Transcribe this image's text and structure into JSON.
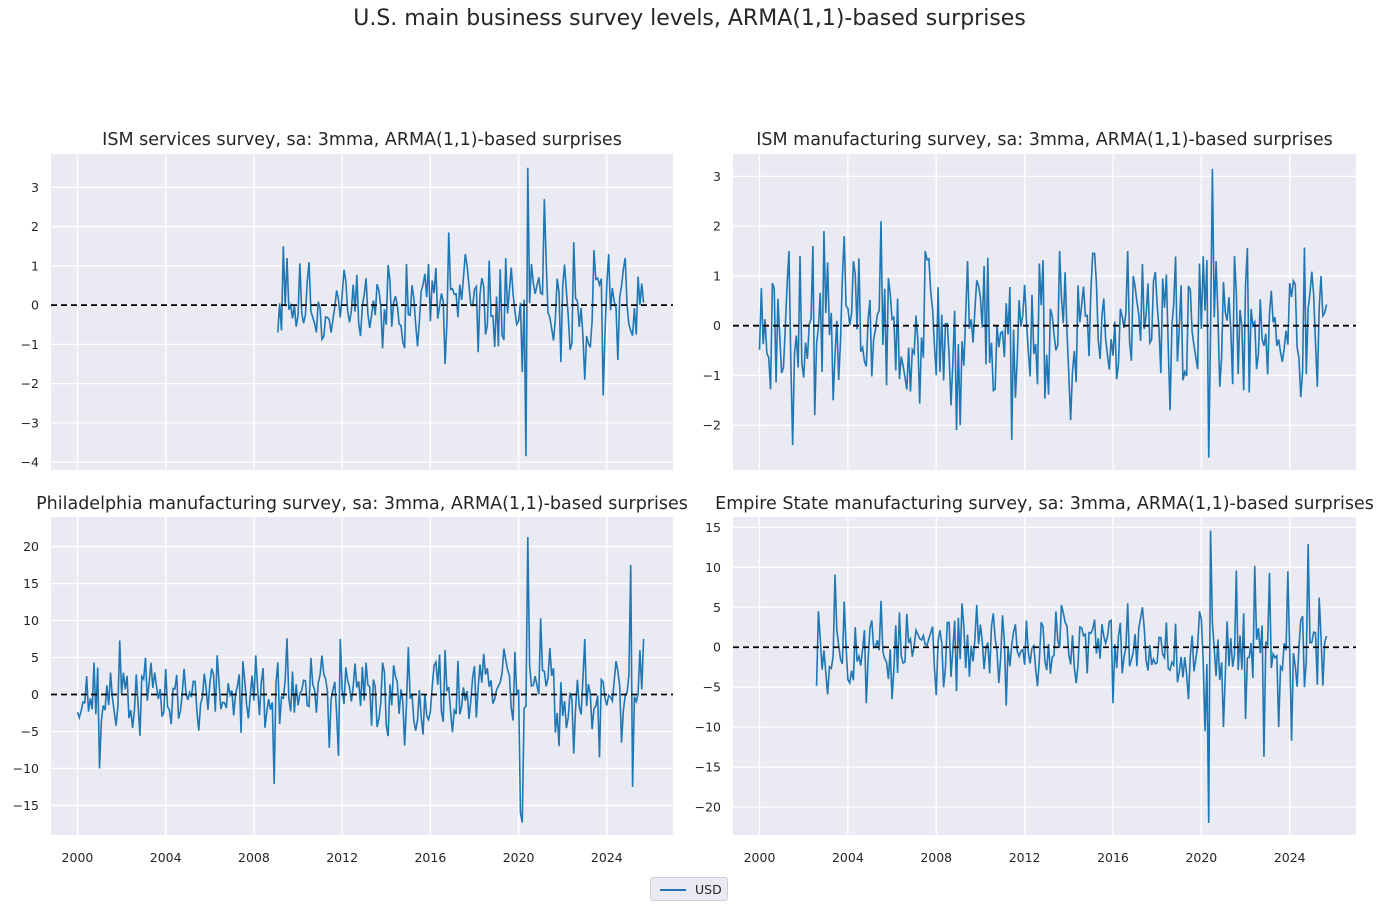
{
  "title": "U.S. main business survey levels, ARMA(1,1)-based surprises",
  "legend": {
    "label": "USD",
    "color": "#1f77b4"
  },
  "chart_data": [
    {
      "type": "line",
      "title": "ISM services survey, sa: 3mma, ARMA(1,1)-based surprises",
      "xlim": [
        1998.8,
        2027.0
      ],
      "ylim": [
        -4.2,
        3.85
      ],
      "xticks": [
        2000,
        2004,
        2008,
        2012,
        2016,
        2020,
        2024
      ],
      "show_xticklabels": false,
      "yticks": [
        -4,
        -3,
        -2,
        -1,
        0,
        1,
        2,
        3
      ],
      "ytick_labels": [
        "−4",
        "−3",
        "−2",
        "−1",
        "0",
        "1",
        "2",
        "3"
      ],
      "zero_line": 0,
      "series_start": 2009.1,
      "series_end": 2025.7,
      "amplitude": 0.55,
      "seed": 11,
      "spikes": [
        [
          2009.3,
          1.5
        ],
        [
          2009.5,
          1.2
        ],
        [
          2010.4,
          0.6
        ],
        [
          2011.2,
          -0.8
        ],
        [
          2012.1,
          0.9
        ],
        [
          2013.8,
          -1.1
        ],
        [
          2014.9,
          1.05
        ],
        [
          2015.4,
          -1.05
        ],
        [
          2015.9,
          1.05
        ],
        [
          2016.7,
          -1.5
        ],
        [
          2016.8,
          1.85
        ],
        [
          2017.6,
          1.3
        ],
        [
          2018.2,
          -1.2
        ],
        [
          2019.1,
          -1.05
        ],
        [
          2019.4,
          1.2
        ],
        [
          2020.2,
          -1.7
        ],
        [
          2020.3,
          -3.85
        ],
        [
          2020.45,
          3.5
        ],
        [
          2021.2,
          2.7
        ],
        [
          2021.6,
          -0.9
        ],
        [
          2021.9,
          -1.45
        ],
        [
          2022.5,
          1.6
        ],
        [
          2023.0,
          -1.9
        ],
        [
          2023.4,
          1.4
        ],
        [
          2023.8,
          -2.3
        ],
        [
          2024.1,
          1.3
        ],
        [
          2024.5,
          -1.4
        ],
        [
          2024.8,
          1.2
        ],
        [
          2025.3,
          -0.75
        ],
        [
          2025.6,
          0.55
        ]
      ]
    },
    {
      "type": "line",
      "title": "ISM manufacturing survey, sa: 3mma, ARMA(1,1)-based surprises",
      "xlim": [
        1998.8,
        2027.0
      ],
      "ylim": [
        -2.9,
        3.45
      ],
      "xticks": [
        2000,
        2004,
        2008,
        2012,
        2016,
        2020,
        2024
      ],
      "show_xticklabels": false,
      "yticks": [
        -2,
        -1,
        0,
        1,
        2,
        3
      ],
      "ytick_labels": [
        "−2",
        "−1",
        "0",
        "1",
        "2",
        "3"
      ],
      "zero_line": 0,
      "series_start": 2000.0,
      "series_end": 2025.7,
      "amplitude": 0.75,
      "seed": 23,
      "spikes": [
        [
          2001.0,
          -0.95
        ],
        [
          2001.3,
          1.5
        ],
        [
          2001.5,
          -2.4
        ],
        [
          2001.8,
          1.4
        ],
        [
          2002.5,
          -1.8
        ],
        [
          2002.9,
          1.9
        ],
        [
          2003.3,
          -1.5
        ],
        [
          2003.8,
          1.8
        ],
        [
          2005.5,
          2.1
        ],
        [
          2006.2,
          -0.9
        ],
        [
          2007.5,
          1.5
        ],
        [
          2008.3,
          -1.1
        ],
        [
          2008.7,
          -1.6
        ],
        [
          2008.9,
          -2.1
        ],
        [
          2009.1,
          -2.0
        ],
        [
          2009.4,
          1.3
        ],
        [
          2010.2,
          1.2
        ],
        [
          2011.4,
          -2.3
        ],
        [
          2011.6,
          -1.45
        ],
        [
          2012.7,
          1.25
        ],
        [
          2013.6,
          1.5
        ],
        [
          2014.1,
          -1.9
        ],
        [
          2016.7,
          1.5
        ],
        [
          2018.6,
          -1.7
        ],
        [
          2019.9,
          1.25
        ],
        [
          2020.3,
          -2.65
        ],
        [
          2020.5,
          3.15
        ],
        [
          2020.7,
          1.3
        ],
        [
          2021.5,
          1.4
        ],
        [
          2021.9,
          -1.3
        ],
        [
          2023.2,
          0.7
        ],
        [
          2024.2,
          0.9
        ],
        [
          2024.9,
          0.65
        ],
        [
          2025.5,
          0.2
        ]
      ]
    },
    {
      "type": "line",
      "title": "Philadelphia manufacturing survey, sa: 3mma, ARMA(1,1)-based surprises",
      "xlim": [
        1998.8,
        2027.0
      ],
      "ylim": [
        -19.0,
        24.0
      ],
      "xticks": [
        2000,
        2004,
        2008,
        2012,
        2016,
        2020,
        2024
      ],
      "show_xticklabels": true,
      "xtick_labels": [
        "2000",
        "2004",
        "2008",
        "2012",
        "2016",
        "2020",
        "2024"
      ],
      "yticks": [
        -15,
        -10,
        -5,
        0,
        5,
        10,
        15,
        20
      ],
      "ytick_labels": [
        "−15",
        "−10",
        "−5",
        "0",
        "5",
        "10",
        "15",
        "20"
      ],
      "zero_line": 0,
      "series_start": 2000.0,
      "series_end": 2025.7,
      "amplitude": 2.6,
      "seed": 37,
      "spikes": [
        [
          2001.0,
          -10.0
        ],
        [
          2001.9,
          7.3
        ],
        [
          2002.5,
          -4.5
        ],
        [
          2003.3,
          4.3
        ],
        [
          2007.5,
          4.5
        ],
        [
          2008.5,
          -4.5
        ],
        [
          2008.9,
          -12.1
        ],
        [
          2009.5,
          7.6
        ],
        [
          2011.4,
          -7.2
        ],
        [
          2011.8,
          -8.3
        ],
        [
          2011.9,
          7.5
        ],
        [
          2013.8,
          4.3
        ],
        [
          2014.8,
          -6.9
        ],
        [
          2015.0,
          6.4
        ],
        [
          2016.7,
          6.0
        ],
        [
          2018.4,
          5.5
        ],
        [
          2019.3,
          6.2
        ],
        [
          2019.8,
          5.8
        ],
        [
          2020.1,
          -16.0
        ],
        [
          2020.2,
          -17.3
        ],
        [
          2020.4,
          21.3
        ],
        [
          2021.0,
          10.3
        ],
        [
          2021.4,
          6.3
        ],
        [
          2021.8,
          -7.0
        ],
        [
          2022.5,
          -8.0
        ],
        [
          2023.0,
          7.5
        ],
        [
          2023.7,
          -8.5
        ],
        [
          2024.4,
          4.5
        ],
        [
          2024.7,
          -6.5
        ],
        [
          2025.05,
          17.5
        ],
        [
          2025.2,
          -12.5
        ],
        [
          2025.5,
          6.0
        ],
        [
          2025.7,
          7.5
        ]
      ]
    },
    {
      "type": "line",
      "title": "Empire State manufacturing survey, sa: 3mma, ARMA(1,1)-based surprises",
      "xlim": [
        1998.8,
        2027.0
      ],
      "ylim": [
        -23.5,
        16.3
      ],
      "xticks": [
        2000,
        2004,
        2008,
        2012,
        2016,
        2020,
        2024
      ],
      "show_xticklabels": true,
      "xtick_labels": [
        "2000",
        "2004",
        "2008",
        "2012",
        "2016",
        "2020",
        "2024"
      ],
      "yticks": [
        -20,
        -15,
        -10,
        -5,
        0,
        5,
        10,
        15
      ],
      "ytick_labels": [
        "−20",
        "−15",
        "−10",
        "−5",
        "0",
        "5",
        "10",
        "15"
      ],
      "zero_line": 0,
      "series_start": 2002.6,
      "series_end": 2025.7,
      "amplitude": 2.3,
      "seed": 53,
      "spikes": [
        [
          2002.7,
          4.5
        ],
        [
          2003.1,
          -5.9
        ],
        [
          2003.4,
          9.1
        ],
        [
          2003.8,
          5.7
        ],
        [
          2004.8,
          -7.0
        ],
        [
          2005.5,
          5.8
        ],
        [
          2006.0,
          -6.5
        ],
        [
          2008.0,
          -6.0
        ],
        [
          2008.9,
          -5.5
        ],
        [
          2009.2,
          5.5
        ],
        [
          2009.8,
          5.3
        ],
        [
          2011.0,
          4.0
        ],
        [
          2011.2,
          -7.3
        ],
        [
          2013.7,
          5.3
        ],
        [
          2014.3,
          -4.5
        ],
        [
          2016.0,
          -7.0
        ],
        [
          2016.7,
          5.5
        ],
        [
          2017.3,
          5.0
        ],
        [
          2019.4,
          -6.5
        ],
        [
          2020.2,
          -10.5
        ],
        [
          2020.3,
          -22.0
        ],
        [
          2020.45,
          14.6
        ],
        [
          2021.0,
          -10.0
        ],
        [
          2021.6,
          9.6
        ],
        [
          2022.0,
          -9.0
        ],
        [
          2022.4,
          10.2
        ],
        [
          2022.8,
          -13.7
        ],
        [
          2023.1,
          9.3
        ],
        [
          2023.5,
          -10.0
        ],
        [
          2023.9,
          9.5
        ],
        [
          2024.1,
          -11.7
        ],
        [
          2024.7,
          -5.0
        ],
        [
          2024.8,
          12.9
        ],
        [
          2025.3,
          6.2
        ],
        [
          2025.5,
          -4.8
        ]
      ]
    }
  ]
}
